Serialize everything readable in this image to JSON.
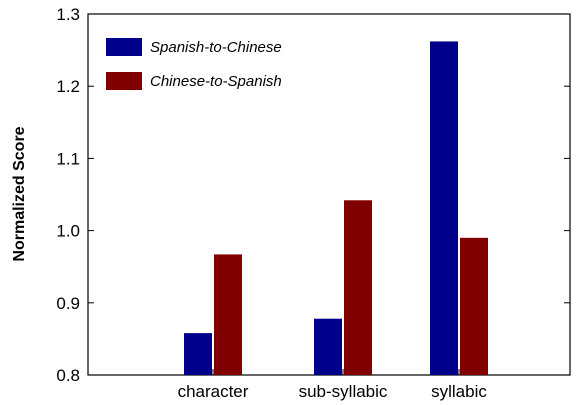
{
  "chart_data": {
    "type": "bar",
    "title": "",
    "xlabel": "",
    "ylabel": "Normalized Score",
    "categories": [
      "character",
      "sub-syllabic",
      "syllabic"
    ],
    "series": [
      {
        "name": "Spanish-to-Chinese",
        "color": "#00008b",
        "values": [
          0.858,
          0.878,
          1.262
        ]
      },
      {
        "name": "Chinese-to-Spanish",
        "color": "#800000",
        "values": [
          0.967,
          1.042,
          0.99
        ]
      }
    ],
    "ylim": [
      0.8,
      1.3
    ],
    "yticks": [
      "0.8",
      "0.9",
      "1.0",
      "1.1",
      "1.2",
      "1.3"
    ],
    "grid": false,
    "legend_position": "top-left"
  }
}
